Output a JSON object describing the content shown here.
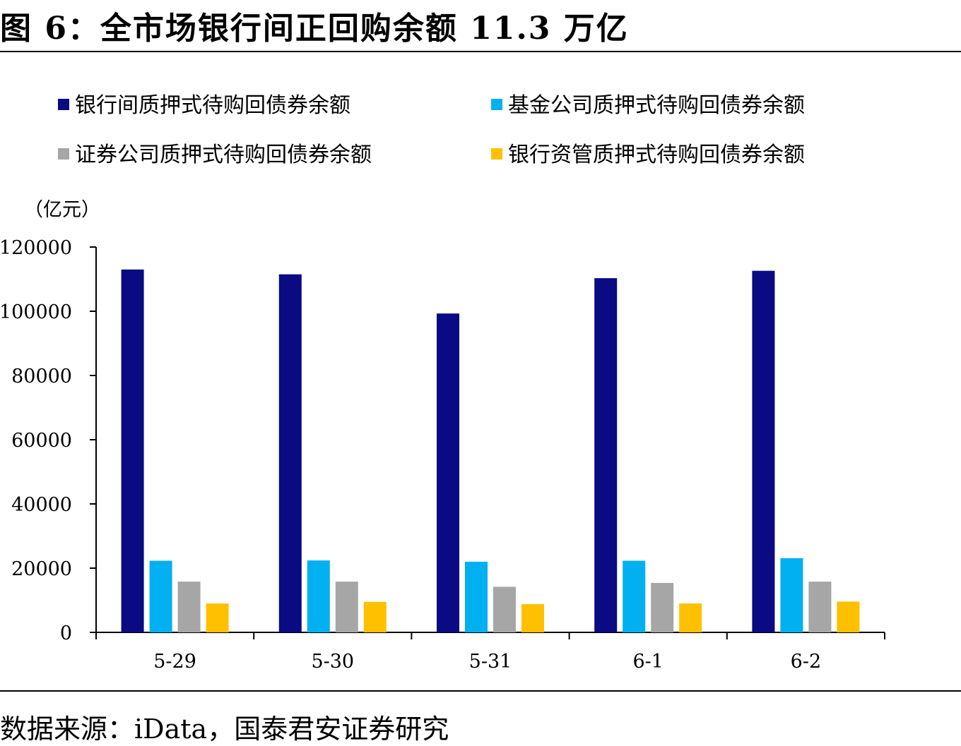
{
  "header": {
    "title": "图 6：全市场银行间正回购余额 11.3 万亿"
  },
  "footer": {
    "source": "数据来源：iData，国泰君安证券研究"
  },
  "chart_data": {
    "type": "bar",
    "title": "图 6：全市场银行间正回购余额 11.3 万亿",
    "ylabel": "（亿元）",
    "xlabel": "",
    "categories": [
      "5-29",
      "5-30",
      "5-31",
      "6-1",
      "6-2"
    ],
    "ylim": [
      0,
      120000
    ],
    "yticks": [
      0,
      20000,
      40000,
      60000,
      80000,
      100000,
      120000
    ],
    "legend_position": "top",
    "grid": false,
    "series": [
      {
        "name": "银行间质押式待购回债券余额",
        "color": "#0a0a83",
        "values": [
          113000,
          111500,
          99300,
          110300,
          112600
        ]
      },
      {
        "name": "基金公司质押式待购回债券余额",
        "color": "#00b0f0",
        "values": [
          22300,
          22400,
          22000,
          22300,
          23100
        ]
      },
      {
        "name": "证券公司质押式待购回债券余额",
        "color": "#a6a6a6",
        "values": [
          15800,
          15800,
          14200,
          15400,
          15800
        ]
      },
      {
        "name": "银行资管质押式待购回债券余额",
        "color": "#ffc000",
        "values": [
          9000,
          9500,
          8800,
          9000,
          9600
        ]
      }
    ]
  }
}
